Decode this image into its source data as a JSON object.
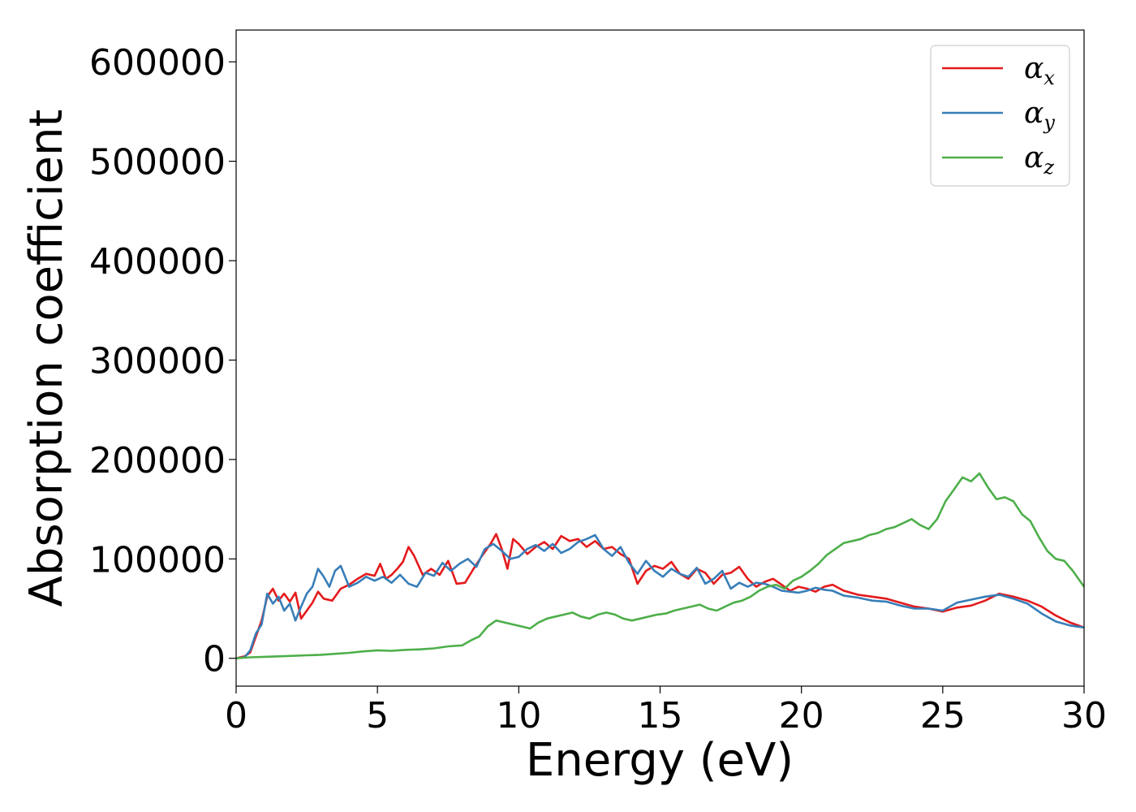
{
  "chart_data": {
    "type": "line",
    "xlabel": "Energy (eV)",
    "ylabel": "Absorption coefficient",
    "xlim": [
      0,
      30
    ],
    "ylim": [
      -28000,
      632000
    ],
    "xticks": [
      0,
      5,
      10,
      15,
      20,
      25,
      30
    ],
    "yticks": [
      0,
      100000,
      200000,
      300000,
      400000,
      500000,
      600000
    ],
    "grid": false,
    "legend_position": "top-right",
    "series": [
      {
        "name": "αx",
        "symbol": "α",
        "subscript": "x",
        "color": "#e41a1c",
        "x": [
          0,
          0.3,
          0.5,
          0.7,
          0.9,
          1.1,
          1.3,
          1.5,
          1.7,
          1.9,
          2.1,
          2.3,
          2.5,
          2.7,
          2.9,
          3.1,
          3.4,
          3.7,
          4.0,
          4.3,
          4.6,
          4.9,
          5.1,
          5.3,
          5.5,
          5.7,
          5.9,
          6.1,
          6.3,
          6.6,
          6.9,
          7.2,
          7.5,
          7.8,
          8.1,
          8.4,
          8.7,
          9.0,
          9.2,
          9.4,
          9.6,
          9.8,
          10.0,
          10.3,
          10.6,
          10.9,
          11.2,
          11.5,
          11.8,
          12.1,
          12.4,
          12.7,
          13.0,
          13.3,
          13.6,
          13.9,
          14.2,
          14.5,
          14.8,
          15.1,
          15.4,
          15.7,
          16.0,
          16.3,
          16.6,
          16.9,
          17.2,
          17.5,
          17.8,
          18.1,
          18.4,
          18.7,
          19.0,
          19.3,
          19.6,
          19.9,
          20.2,
          20.5,
          20.8,
          21.1,
          21.5,
          22.0,
          22.5,
          23.0,
          23.5,
          24.0,
          24.5,
          25.0,
          25.5,
          26.0,
          26.5,
          27.0,
          27.5,
          28.0,
          28.5,
          29.0,
          29.5,
          30.0
        ],
        "y": [
          0,
          2000,
          6000,
          22000,
          38000,
          62000,
          70000,
          58000,
          65000,
          57000,
          66000,
          40000,
          48000,
          56000,
          67000,
          60000,
          58000,
          70000,
          74000,
          80000,
          85000,
          83000,
          95000,
          80000,
          84000,
          90000,
          97000,
          112000,
          103000,
          84000,
          90000,
          84000,
          98000,
          75000,
          76000,
          90000,
          103000,
          115000,
          125000,
          110000,
          90000,
          120000,
          115000,
          105000,
          112000,
          117000,
          110000,
          123000,
          118000,
          120000,
          112000,
          118000,
          110000,
          112000,
          105000,
          100000,
          75000,
          88000,
          93000,
          90000,
          97000,
          85000,
          80000,
          90000,
          86000,
          75000,
          84000,
          86000,
          92000,
          80000,
          72000,
          77000,
          80000,
          74000,
          68000,
          72000,
          70000,
          67000,
          72000,
          74000,
          68000,
          64000,
          62000,
          60000,
          56000,
          52000,
          50000,
          47000,
          51000,
          53000,
          58000,
          65000,
          62000,
          58000,
          52000,
          43000,
          36000,
          31000
        ]
      },
      {
        "name": "αy",
        "symbol": "α",
        "subscript": "y",
        "color": "#377eb8",
        "x": [
          0,
          0.3,
          0.5,
          0.7,
          0.9,
          1.1,
          1.3,
          1.5,
          1.7,
          1.9,
          2.1,
          2.3,
          2.5,
          2.7,
          2.9,
          3.1,
          3.3,
          3.5,
          3.7,
          4.0,
          4.3,
          4.6,
          4.9,
          5.2,
          5.5,
          5.8,
          6.1,
          6.4,
          6.7,
          7.0,
          7.3,
          7.6,
          7.9,
          8.2,
          8.5,
          8.8,
          9.1,
          9.4,
          9.7,
          10.0,
          10.3,
          10.6,
          10.9,
          11.2,
          11.5,
          11.8,
          12.1,
          12.4,
          12.7,
          13.0,
          13.3,
          13.6,
          13.9,
          14.2,
          14.5,
          14.8,
          15.1,
          15.4,
          15.7,
          16.0,
          16.3,
          16.6,
          16.9,
          17.2,
          17.5,
          17.8,
          18.1,
          18.4,
          18.7,
          19.0,
          19.3,
          19.6,
          19.9,
          20.2,
          20.5,
          20.8,
          21.1,
          21.5,
          22.0,
          22.5,
          23.0,
          23.5,
          24.0,
          24.5,
          25.0,
          25.5,
          26.0,
          26.5,
          27.0,
          27.5,
          28.0,
          28.5,
          29.0,
          29.5,
          30.0
        ],
        "y": [
          0,
          1000,
          8000,
          25000,
          34000,
          65000,
          55000,
          62000,
          48000,
          55000,
          38000,
          52000,
          65000,
          72000,
          90000,
          82000,
          72000,
          88000,
          93000,
          72000,
          76000,
          82000,
          78000,
          82000,
          76000,
          84000,
          75000,
          72000,
          86000,
          83000,
          96000,
          88000,
          95000,
          100000,
          92000,
          110000,
          115000,
          108000,
          100000,
          102000,
          110000,
          114000,
          108000,
          115000,
          106000,
          110000,
          117000,
          120000,
          124000,
          110000,
          103000,
          112000,
          96000,
          85000,
          98000,
          88000,
          82000,
          90000,
          85000,
          82000,
          91000,
          75000,
          80000,
          88000,
          70000,
          76000,
          72000,
          76000,
          75000,
          72000,
          68000,
          67000,
          66000,
          68000,
          71000,
          69000,
          68000,
          63000,
          61000,
          58000,
          57000,
          53000,
          50000,
          50000,
          48000,
          56000,
          59000,
          62000,
          64000,
          60000,
          55000,
          45000,
          37000,
          33000,
          31000
        ]
      },
      {
        "name": "αz",
        "symbol": "α",
        "subscript": "z",
        "color": "#4daf4a",
        "x": [
          0,
          0.5,
          1.0,
          1.5,
          2.0,
          2.5,
          3.0,
          3.5,
          4.0,
          4.5,
          5.0,
          5.5,
          6.0,
          6.5,
          7.0,
          7.5,
          8.0,
          8.3,
          8.6,
          8.9,
          9.2,
          9.5,
          9.8,
          10.1,
          10.4,
          10.7,
          11.0,
          11.3,
          11.6,
          11.9,
          12.2,
          12.5,
          12.8,
          13.1,
          13.4,
          13.7,
          14.0,
          14.3,
          14.6,
          14.9,
          15.2,
          15.5,
          15.8,
          16.1,
          16.4,
          16.7,
          17.0,
          17.3,
          17.6,
          17.9,
          18.2,
          18.5,
          18.8,
          19.1,
          19.4,
          19.7,
          20.0,
          20.3,
          20.6,
          20.9,
          21.2,
          21.5,
          21.8,
          22.1,
          22.4,
          22.7,
          23.0,
          23.3,
          23.6,
          23.9,
          24.2,
          24.5,
          24.8,
          25.1,
          25.4,
          25.7,
          26.0,
          26.3,
          26.6,
          26.9,
          27.2,
          27.5,
          27.8,
          28.1,
          28.4,
          28.7,
          29.0,
          29.3,
          29.6,
          30.0
        ],
        "y": [
          0,
          1000,
          1500,
          2000,
          2500,
          3000,
          3500,
          4500,
          5500,
          7000,
          8000,
          7500,
          8500,
          9000,
          10000,
          12000,
          13000,
          18000,
          22000,
          32000,
          38000,
          36000,
          34000,
          32000,
          30000,
          36000,
          40000,
          42000,
          44000,
          46000,
          42000,
          40000,
          44000,
          46000,
          44000,
          40000,
          38000,
          40000,
          42000,
          44000,
          45000,
          48000,
          50000,
          52000,
          54000,
          50000,
          48000,
          52000,
          56000,
          58000,
          62000,
          68000,
          72000,
          74000,
          70000,
          78000,
          82000,
          88000,
          95000,
          104000,
          110000,
          116000,
          118000,
          120000,
          124000,
          126000,
          130000,
          132000,
          136000,
          140000,
          134000,
          130000,
          140000,
          158000,
          170000,
          182000,
          178000,
          186000,
          172000,
          160000,
          162000,
          158000,
          145000,
          138000,
          122000,
          108000,
          100000,
          98000,
          88000,
          72000
        ]
      }
    ]
  }
}
